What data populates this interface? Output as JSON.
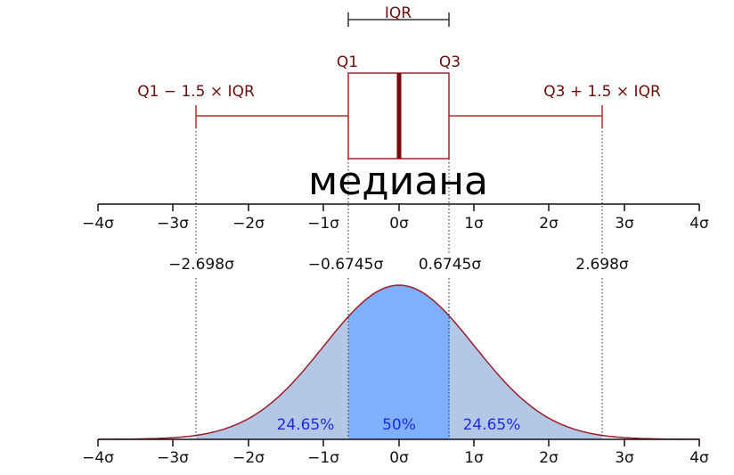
{
  "boxplot": {
    "iqr_label": "IQR",
    "q1_label": "Q1",
    "q3_label": "Q3",
    "lower_whisker_label": "Q1 − 1.5 × IQR",
    "upper_whisker_label": "Q3 + 1.5 × IQR",
    "median_label": "медиана"
  },
  "sigma_values": {
    "lower_whisker": "−2.698σ",
    "q1": "−0.6745σ",
    "q3": "0.6745σ",
    "upper_whisker": "2.698σ"
  },
  "axis_ticks": [
    "−4σ",
    "−3σ",
    "−2σ",
    "−1σ",
    "0σ",
    "1σ",
    "2σ",
    "3σ",
    "4σ"
  ],
  "distribution": {
    "left_tail_percent": "24.65%",
    "center_percent": "50%",
    "right_tail_percent": "24.65%"
  },
  "colors": {
    "box": "#6b0d0d",
    "whisker": "#b03030",
    "curve": "#9a1f2a",
    "center_fill": "#7fb0ff",
    "side_fill": "#b3c7e6",
    "percent_text": "#1f2bd8"
  }
}
